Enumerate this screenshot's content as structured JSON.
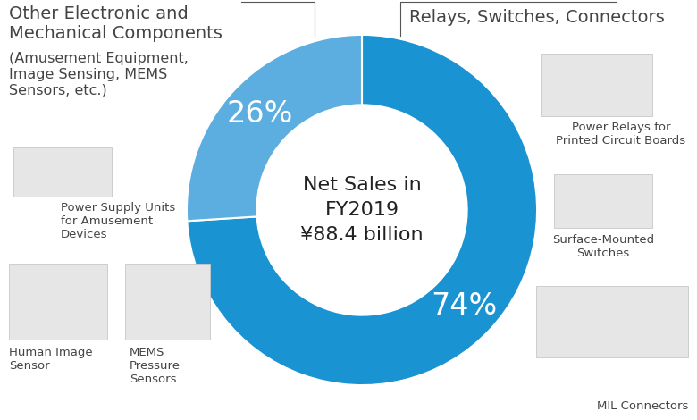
{
  "chart_data": {
    "type": "pie",
    "center_text": "Net Sales in\nFY2019\n¥88.4 billion",
    "categories": [
      "Relays, Switches, Connectors",
      "Other Electronic and\nMechanical Components"
    ],
    "category_details": [
      null,
      "(Amusement Equipment,\nImage Sensing, MEMS\nSensors, etc.)"
    ],
    "values": [
      74,
      26
    ],
    "value_labels": [
      "74%",
      "26%"
    ],
    "colors": [
      "#1a93d2",
      "#5caee0"
    ],
    "data_labels": true,
    "products": [
      [
        "Power Relays for\nPrinted Circuit Boards",
        "Surface-Mounted\nSwitches",
        "MIL Connectors"
      ],
      [
        "Power Supply Units\nfor Amusement\nDevices",
        "Human Image\nSensor",
        "MEMS\nPressure\nSensors"
      ]
    ]
  }
}
